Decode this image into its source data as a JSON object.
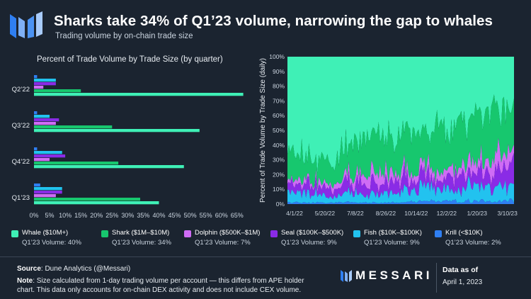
{
  "header": {
    "title": "Sharks take 34% of Q1’23 volume, narrowing the gap to whales",
    "subtitle": "Trading volume by on-chain trade size",
    "logo_icon": "messari-m-logo-icon"
  },
  "colors": {
    "whale": "#3ff0b6",
    "shark": "#17c76e",
    "dolphin": "#cf6cf5",
    "seal": "#8a2be6",
    "fish": "#22c2ef",
    "krill": "#2f7ff2",
    "background": "#1b2430"
  },
  "chart_data": [
    {
      "type": "bar",
      "orientation": "horizontal",
      "title": "Percent of Trade Volume by Trade Size (by quarter)",
      "categories": [
        "Q2’22",
        "Q3’22",
        "Q4’22",
        "Q1’23"
      ],
      "xticks": [
        "0%",
        "5%",
        "10%",
        "15%",
        "20%",
        "25%",
        "30%",
        "35%",
        "40%",
        "45%",
        "50%",
        "55%",
        "60%",
        "65%"
      ],
      "xlim": [
        0,
        68
      ],
      "series": [
        {
          "name": "Krill",
          "values": [
            1,
            1,
            1,
            2
          ]
        },
        {
          "name": "Fish",
          "values": [
            7,
            5,
            9,
            9
          ]
        },
        {
          "name": "Seal",
          "values": [
            7,
            8,
            10,
            9
          ]
        },
        {
          "name": "Dolphin",
          "values": [
            3,
            7,
            5,
            7
          ]
        },
        {
          "name": "Shark",
          "values": [
            15,
            25,
            27,
            34
          ]
        },
        {
          "name": "Whale",
          "values": [
            67,
            53,
            48,
            40
          ]
        }
      ]
    },
    {
      "type": "area",
      "stacked": true,
      "ylabel": "Percent of Trade Volume by Trade Size (daily)",
      "yticks": [
        "0%",
        "10%",
        "20%",
        "30%",
        "40%",
        "50%",
        "60%",
        "70%",
        "80%",
        "90%",
        "100%"
      ],
      "ylim": [
        0,
        100
      ],
      "xticks": [
        "4/1/22",
        "5/20/22",
        "7/8/22",
        "8/26/22",
        "10/14/22",
        "12/2/22",
        "1/20/23",
        "3/10/23"
      ],
      "x_start": "4/1/22",
      "x_end": "4/1/23",
      "stack_order": [
        "Krill",
        "Fish",
        "Seal",
        "Dolphin",
        "Shark",
        "Whale"
      ],
      "series": [
        {
          "name": "Krill",
          "values": [
            1,
            1,
            1,
            1,
            1,
            1,
            1,
            1,
            1,
            1,
            1,
            1,
            1,
            2,
            2,
            2,
            2,
            2,
            2,
            2,
            2,
            2,
            2,
            2
          ]
        },
        {
          "name": "Fish",
          "values": [
            7,
            6,
            7,
            6,
            5,
            6,
            6,
            7,
            5,
            6,
            6,
            8,
            7,
            8,
            9,
            9,
            8,
            8,
            9,
            10,
            9,
            9,
            8,
            9
          ]
        },
        {
          "name": "Seal",
          "values": [
            6,
            5,
            6,
            6,
            6,
            6,
            8,
            9,
            7,
            8,
            8,
            8,
            9,
            9,
            10,
            9,
            9,
            9,
            10,
            10,
            10,
            11,
            12,
            14
          ]
        },
        {
          "name": "Dolphin",
          "values": [
            3,
            3,
            3,
            3,
            3,
            4,
            5,
            6,
            6,
            7,
            7,
            6,
            6,
            6,
            5,
            5,
            5,
            6,
            6,
            7,
            8,
            9,
            10,
            10
          ]
        },
        {
          "name": "Shark",
          "values": [
            16,
            18,
            15,
            13,
            15,
            17,
            20,
            25,
            28,
            27,
            25,
            22,
            26,
            24,
            27,
            28,
            26,
            30,
            30,
            34,
            36,
            36,
            34,
            30
          ]
        },
        {
          "name": "Whale",
          "values": [
            67,
            67,
            68,
            71,
            70,
            66,
            60,
            52,
            53,
            51,
            53,
            55,
            51,
            51,
            47,
            47,
            50,
            45,
            43,
            37,
            35,
            33,
            34,
            35
          ]
        }
      ]
    }
  ],
  "legend": [
    {
      "key": "whale",
      "name": "Whale ($10M+)",
      "volume": "Q1’23 Volume: 40%"
    },
    {
      "key": "shark",
      "name": "Shark ($1M–$10M)",
      "volume": "Q1’23 Volume: 34%"
    },
    {
      "key": "dolphin",
      "name": "Dolphin ($500K–$1M)",
      "volume": "Q1’23 Volume: 7%"
    },
    {
      "key": "seal",
      "name": "Seal ($100K–$500K)",
      "volume": "Q1’23 Volume: 9%"
    },
    {
      "key": "fish",
      "name": "Fish ($10K–$100K)",
      "volume": "Q1’23 Volume: 9%"
    },
    {
      "key": "krill",
      "name": "Krill (<$10K)",
      "volume": "Q1’23 Volume: 2%"
    }
  ],
  "footer": {
    "source_label": "Source",
    "source_text": ": Dune Analytics (@Messari)",
    "note_label": "Note",
    "note_text": ": Size calculated from 1-day trading volume per account — this differs from APE holder chart. This data only accounts for on-chain DEX activity and does not include CEX volume.",
    "brand": "MESSARI",
    "brand_icon": "messari-bars-icon",
    "as_of_label": "Data as of",
    "as_of_date": "April 1, 2023"
  }
}
